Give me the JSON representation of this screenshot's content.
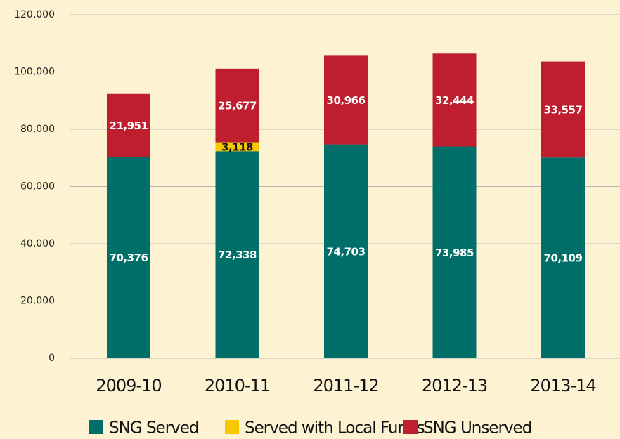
{
  "chart_data": {
    "type": "stacked-bar",
    "categories": [
      "2009-10",
      "2010-11",
      "2011-12",
      "2012-13",
      "2013-14"
    ],
    "series": [
      {
        "name": "SNG Served",
        "color": "#006f69",
        "values": [
          70376,
          72338,
          74703,
          73985,
          70109
        ],
        "value_labels": [
          "70,376",
          "72,338",
          "74,703",
          "73,985",
          "70,109"
        ]
      },
      {
        "name": "Served with Local Funds",
        "color": "#f7c800",
        "values": [
          null,
          3118,
          null,
          null,
          null
        ],
        "value_labels": [
          null,
          "3,118",
          null,
          null,
          null
        ]
      },
      {
        "name": "SNG Unserved",
        "color": "#be1e2d",
        "values": [
          21951,
          25677,
          30966,
          32444,
          33557
        ],
        "value_labels": [
          "21,951",
          "25,677",
          "30,966",
          "32,444",
          "33,557"
        ]
      }
    ],
    "ylim": [
      0,
      120000
    ],
    "yticks": [
      0,
      {
        "value": 20000,
        "label": "20,000"
      },
      {
        "value": 40000,
        "label": "40,000"
      },
      {
        "value": 60000,
        "label": "60,000"
      },
      {
        "value": 80000,
        "label": "80,000"
      },
      {
        "value": 100000,
        "label": "100,000"
      },
      {
        "value": 120000,
        "label": "120,000"
      }
    ],
    "grid": true,
    "legend": "bottom"
  }
}
